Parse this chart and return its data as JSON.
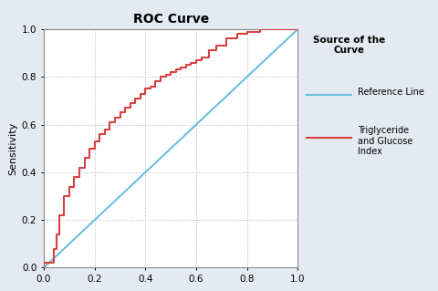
{
  "title": "ROC Curve",
  "ylabel": "Sensitivity",
  "yticks": [
    0.0,
    0.2,
    0.4,
    0.6,
    0.8,
    1.0
  ],
  "xticks": [
    0.0,
    0.2,
    0.4,
    0.6,
    0.8,
    1.0
  ],
  "ref_line_color": "#6BBEDE",
  "roc_line_color": "#D94040",
  "background_color": "#E4E9F2",
  "plot_bg_color": "#FFFFFF",
  "legend_title": "Source of the\nCurve",
  "legend_ref_label": "Reference Line",
  "legend_roc_label": "Triglyceride\nand Glucose\nIndex",
  "title_fontsize": 10,
  "axis_label_fontsize": 8,
  "tick_fontsize": 7.5,
  "roc_x": [
    0.0,
    0.0,
    0.04,
    0.04,
    0.05,
    0.05,
    0.06,
    0.06,
    0.08,
    0.08,
    0.1,
    0.1,
    0.12,
    0.12,
    0.14,
    0.14,
    0.16,
    0.16,
    0.18,
    0.18,
    0.2,
    0.2,
    0.22,
    0.22,
    0.24,
    0.24,
    0.26,
    0.26,
    0.28,
    0.28,
    0.3,
    0.3,
    0.32,
    0.32,
    0.34,
    0.34,
    0.36,
    0.36,
    0.38,
    0.38,
    0.4,
    0.4,
    0.42,
    0.42,
    0.44,
    0.44,
    0.46,
    0.46,
    0.48,
    0.48,
    0.5,
    0.5,
    0.52,
    0.52,
    0.54,
    0.54,
    0.56,
    0.56,
    0.58,
    0.58,
    0.6,
    0.6,
    0.62,
    0.62,
    0.65,
    0.65,
    0.68,
    0.68,
    0.72,
    0.72,
    0.76,
    0.76,
    0.8,
    0.8,
    0.85,
    0.85,
    1.0,
    1.0
  ],
  "roc_y": [
    0.0,
    0.02,
    0.02,
    0.08,
    0.08,
    0.14,
    0.14,
    0.22,
    0.22,
    0.3,
    0.3,
    0.34,
    0.34,
    0.38,
    0.38,
    0.42,
    0.42,
    0.46,
    0.46,
    0.5,
    0.5,
    0.53,
    0.53,
    0.56,
    0.56,
    0.58,
    0.58,
    0.61,
    0.61,
    0.63,
    0.63,
    0.65,
    0.65,
    0.67,
    0.67,
    0.69,
    0.69,
    0.71,
    0.71,
    0.73,
    0.73,
    0.75,
    0.75,
    0.76,
    0.76,
    0.78,
    0.78,
    0.8,
    0.8,
    0.81,
    0.81,
    0.82,
    0.82,
    0.83,
    0.83,
    0.84,
    0.84,
    0.85,
    0.85,
    0.86,
    0.86,
    0.87,
    0.87,
    0.88,
    0.88,
    0.91,
    0.91,
    0.93,
    0.93,
    0.96,
    0.96,
    0.98,
    0.98,
    0.99,
    0.99,
    1.0,
    1.0,
    1.0
  ]
}
